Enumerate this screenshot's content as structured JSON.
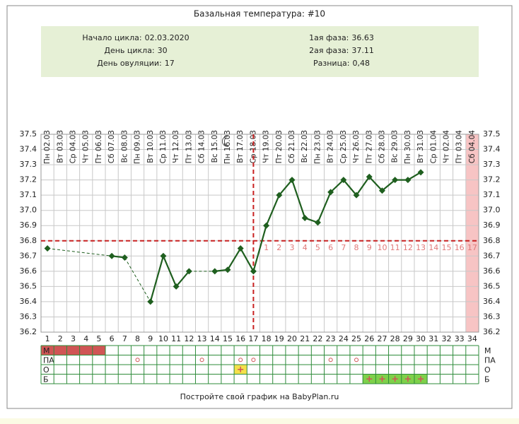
{
  "title": "Базальная температура: #10",
  "info": [
    {
      "label": "Начало цикла:",
      "value": "02.03.2020"
    },
    {
      "label": "День цикла:",
      "value": "30"
    },
    {
      "label": "1ая фаза:",
      "value": "36.63"
    },
    {
      "label": "2ая фаза:",
      "value": "37.11"
    },
    {
      "label": "Разница:",
      "value": "0,48"
    }
  ],
  "ovulation_label": "День овуляции:",
  "footer": "Постройте свой график на BabyPlan.ru",
  "chart_data": {
    "type": "line",
    "categories": [
      "Пн 02.03",
      "Вт 03.03",
      "Ср 04.03",
      "Чт 05.03",
      "Пт 06.03",
      "Сб 07.03",
      "Вс 08.03",
      "Пн 09.03",
      "Вт 10.03",
      "Ср 11.03",
      "Чт 12.03",
      "Пт 13.03",
      "Сб 14.03",
      "Вс 15.03",
      "Пн 16.03",
      "Вт 17.03",
      "Ср 18.03",
      "Чт 19.03",
      "Пт 20.03",
      "Сб 21.03",
      "Вс 22.03",
      "Пн 23.03",
      "Вт 24.03",
      "Ср 25.03",
      "Чт 26.03",
      "Пт 27.03",
      "Сб 28.03",
      "Вс 29.03",
      "Пн 30.03",
      "Вт 31.03",
      "Ср 01.04",
      "Чт 02.04",
      "Пт 03.04",
      "Сб 04.04"
    ],
    "days": [
      1,
      2,
      3,
      4,
      5,
      6,
      7,
      8,
      9,
      10,
      11,
      12,
      13,
      14,
      15,
      16,
      17,
      18,
      19,
      20,
      21,
      22,
      23,
      24,
      25,
      26,
      27,
      28,
      29,
      30,
      31,
      32,
      33,
      34
    ],
    "values": [
      36.75,
      null,
      null,
      null,
      null,
      36.7,
      36.69,
      null,
      36.4,
      36.7,
      36.5,
      36.6,
      null,
      36.6,
      36.61,
      36.75,
      36.6,
      36.9,
      37.1,
      37.2,
      36.95,
      36.92,
      37.12,
      37.2,
      37.1,
      37.22,
      37.13,
      37.2,
      37.2,
      37.25,
      null,
      null,
      null,
      null
    ],
    "color": "#1f5f1f",
    "ylim": [
      36.2,
      37.5
    ],
    "yticks": [
      36.2,
      36.3,
      36.4,
      36.5,
      36.6,
      36.7,
      36.8,
      36.9,
      {
        "value": 37,
        "label": "37.0"
      },
      37.1,
      37.2,
      37.3,
      37.4,
      37.5
    ],
    "grid": true,
    "coverline": 36.8,
    "ovulation_day": 17,
    "phase2_days": [
      1,
      2,
      3,
      4,
      5,
      6,
      7,
      8,
      9,
      10,
      11,
      12,
      13,
      14,
      15,
      16,
      17
    ],
    "rows": [
      {
        "label": "М",
        "marked_days": [
          1,
          2,
          3,
          4,
          5
        ]
      },
      {
        "label": "ПА",
        "marked_days": [
          8,
          13,
          16,
          17,
          23,
          25
        ]
      },
      {
        "label": "О",
        "marked_days": [
          16
        ]
      },
      {
        "label": "Б",
        "marked_days": [
          26,
          27,
          28,
          29,
          30
        ]
      }
    ]
  }
}
